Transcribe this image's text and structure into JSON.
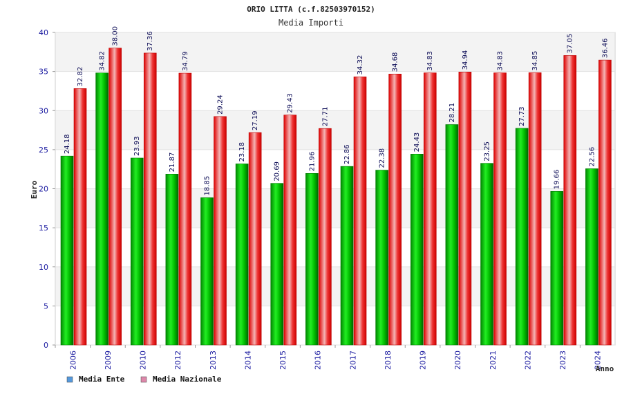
{
  "chart_data": {
    "type": "bar",
    "title": "ORIO LITTA (c.f.82503970152)",
    "subtitle": "Media Importi",
    "xlabel": "Anno",
    "ylabel": "Euro",
    "ylim": [
      0,
      40
    ],
    "yticks": [
      "0",
      "5",
      "10",
      "15",
      "20",
      "25",
      "30",
      "35",
      "40"
    ],
    "grid": true,
    "legend_position": "bottom-left",
    "categories": [
      "2006",
      "2009",
      "2010",
      "2012",
      "2013",
      "2014",
      "2015",
      "2016",
      "2017",
      "2018",
      "2019",
      "2020",
      "2021",
      "2022",
      "2023",
      "2024"
    ],
    "series": [
      {
        "name": "Media Ente",
        "color": "#00aa00",
        "legend_color": "#5599dd",
        "values": [
          24.18,
          34.82,
          23.93,
          21.87,
          18.85,
          23.18,
          20.69,
          21.96,
          22.86,
          22.38,
          24.43,
          28.21,
          23.25,
          27.73,
          19.66,
          22.56
        ],
        "labels": [
          "24.18",
          "34.82",
          "23.93",
          "21.87",
          "18.85",
          "23.18",
          "20.69",
          "21.96",
          "22.86",
          "22.38",
          "24.43",
          "28.21",
          "23.25",
          "27.73",
          "19.66",
          "22.56"
        ]
      },
      {
        "name": "Media Nazionale",
        "color": "#ee1111",
        "legend_color": "#dd88aa",
        "values": [
          32.82,
          38.0,
          37.36,
          34.79,
          29.24,
          27.19,
          29.43,
          27.71,
          34.32,
          34.68,
          34.83,
          34.94,
          34.83,
          34.85,
          37.05,
          36.46
        ],
        "labels": [
          "32.82",
          "38.00",
          "37.36",
          "34.79",
          "29.24",
          "27.19",
          "29.43",
          "27.71",
          "34.32",
          "34.68",
          "34.83",
          "34.94",
          "34.83",
          "34.85",
          "37.05",
          "36.46"
        ]
      }
    ]
  }
}
